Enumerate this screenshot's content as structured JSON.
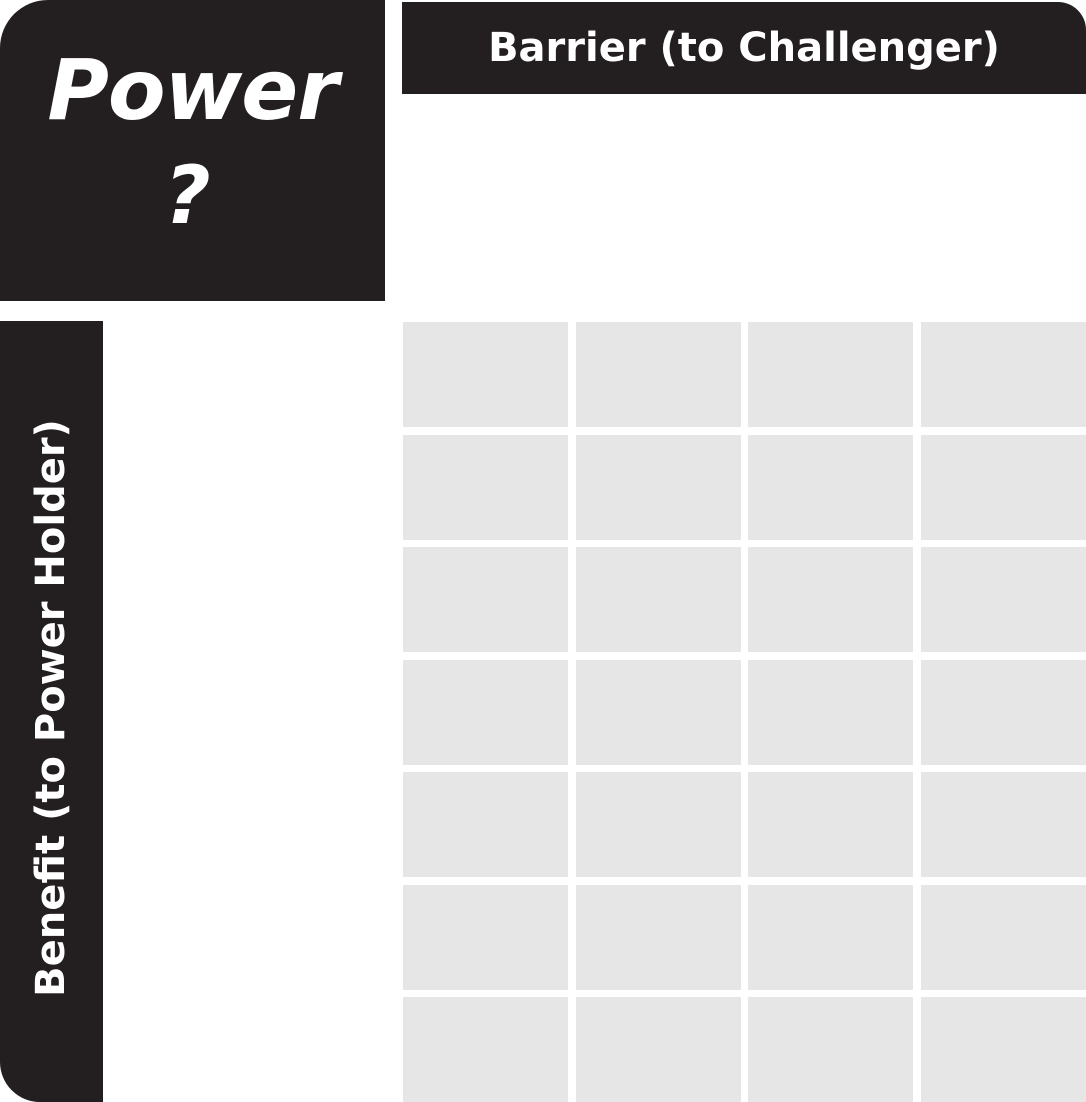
{
  "corner": {
    "title": "Power",
    "question": "?"
  },
  "top_axis": {
    "label": "Barrier (to Challenger)"
  },
  "left_axis": {
    "label": "Benefit (to Power Holder)"
  },
  "grid": {
    "rows": 7,
    "columns": 4
  },
  "colors": {
    "header_fill": "#231f20",
    "header_text": "#ffffff",
    "cell_fill": "#e6e6e6",
    "background": "#ffffff"
  }
}
